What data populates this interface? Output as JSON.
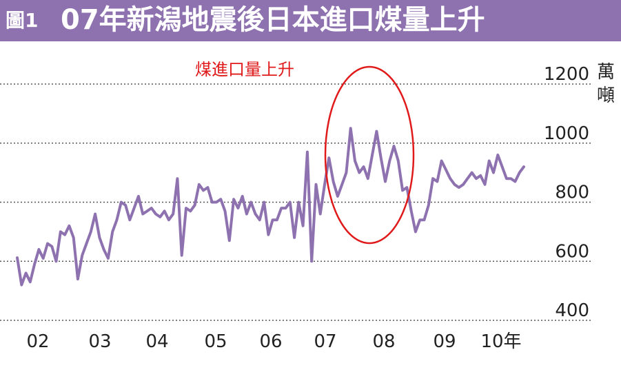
{
  "figure_label": "圖1",
  "title": "07年新潟地震後日本進口煤量上升",
  "unit": "萬噸",
  "annotation": "煤進口量上升",
  "colors": {
    "line": "#8e72b0",
    "title_bar": "#8e72b0",
    "annotation": "#e01a1a",
    "grid": "#555555"
  },
  "chart_data": {
    "type": "line",
    "title": "07年新潟地震後日本進口煤量上升",
    "xlabel": "",
    "ylabel": "萬噸",
    "ylim": [
      400,
      1200
    ],
    "y_ticks": [
      400,
      600,
      800,
      1000,
      1200
    ],
    "x_tick_labels": [
      "02",
      "03",
      "04",
      "05",
      "06",
      "07",
      "08",
      "09",
      "10年"
    ],
    "grid": true,
    "series": [
      {
        "values": [
          612,
          520,
          560,
          530,
          590,
          640,
          610,
          660,
          650,
          600,
          700,
          690,
          720,
          680,
          540,
          620,
          660,
          700,
          760,
          680,
          640,
          610,
          700,
          740,
          800,
          790,
          740,
          780,
          820,
          760,
          770,
          780,
          760,
          750,
          770,
          740,
          760,
          880,
          620,
          780,
          770,
          790,
          860,
          840,
          850,
          800,
          800,
          810,
          770,
          670,
          810,
          780,
          820,
          760,
          800,
          760,
          740,
          800,
          690,
          740,
          740,
          780,
          780,
          800,
          680,
          800,
          720,
          970,
          600,
          860,
          760,
          860,
          950,
          870,
          820,
          860,
          900,
          1050,
          940,
          900,
          920,
          880,
          960,
          1040,
          950,
          870,
          940,
          990,
          940,
          840,
          850,
          770,
          700,
          740,
          740,
          790,
          880,
          870,
          940,
          910,
          880,
          860,
          850,
          860,
          880,
          900,
          880,
          890,
          860,
          940,
          900,
          960,
          920,
          880,
          880,
          870,
          900,
          920
        ]
      }
    ]
  }
}
